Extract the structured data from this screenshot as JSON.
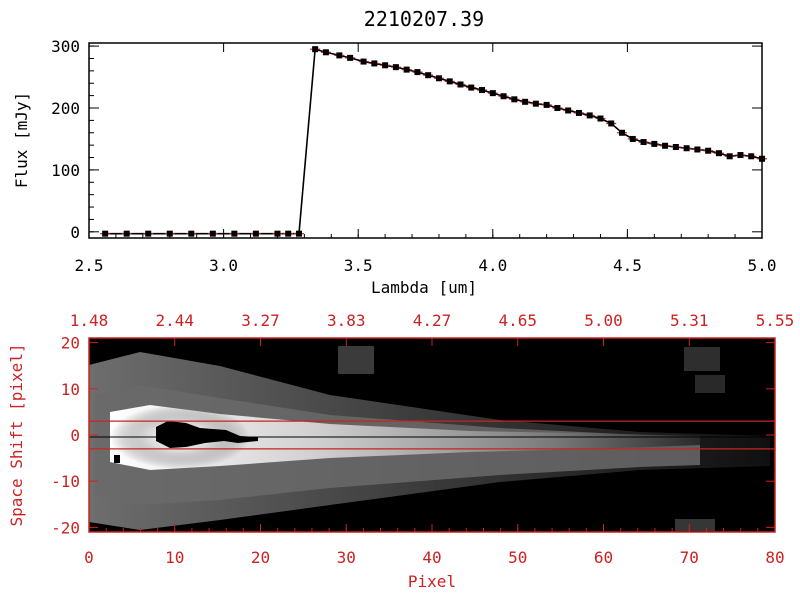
{
  "chart_data": [
    {
      "type": "line",
      "title": "2210207.39",
      "xlabel": "Lambda [um]",
      "ylabel": "Flux [mJy]",
      "xlim": [
        2.5,
        5.0
      ],
      "ylim": [
        -10,
        305
      ],
      "xticks": [
        "2.5",
        "3.0",
        "3.5",
        "4.0",
        "4.5",
        "5.0"
      ],
      "yticks": [
        "0",
        "100",
        "200",
        "300"
      ],
      "series": [
        {
          "x": [
            2.56,
            2.64,
            2.72,
            2.8,
            2.88,
            2.96,
            3.04,
            3.12,
            3.2,
            3.24,
            3.28,
            3.34,
            3.38,
            3.43,
            3.47,
            3.52,
            3.56,
            3.6,
            3.64,
            3.68,
            3.72,
            3.76,
            3.8,
            3.84,
            3.88,
            3.92,
            3.96,
            4.0,
            4.04,
            4.08,
            4.12,
            4.16,
            4.2,
            4.24,
            4.28,
            4.32,
            4.36,
            4.4,
            4.44,
            4.48,
            4.52,
            4.56,
            4.6,
            4.64,
            4.68,
            4.72,
            4.76,
            4.8,
            4.84,
            4.88,
            4.92,
            4.96,
            5.0
          ],
          "y": [
            -3,
            -3,
            -3,
            -3,
            -3,
            -3,
            -3,
            -3,
            -3,
            -3,
            -3,
            295,
            290,
            285,
            281,
            275,
            272,
            269,
            266,
            262,
            258,
            253,
            248,
            243,
            238,
            233,
            229,
            224,
            219,
            214,
            210,
            207,
            205,
            200,
            196,
            192,
            188,
            183,
            175,
            160,
            150,
            145,
            142,
            139,
            137,
            135,
            133,
            131,
            127,
            122,
            124,
            122,
            118
          ]
        }
      ]
    },
    {
      "type": "heatmap",
      "xlabel": "Pixel",
      "ylabel": "Space Shift [pixel]",
      "xlim": [
        0,
        80
      ],
      "ylim": [
        -21,
        21
      ],
      "xticks": [
        "0",
        "10",
        "20",
        "30",
        "40",
        "50",
        "60",
        "70",
        "80"
      ],
      "yticks": [
        "-20",
        "-10",
        "0",
        "10",
        "20"
      ],
      "top_axis_labels": [
        "1.48",
        "2.44",
        "3.27",
        "3.83",
        "4.27",
        "4.65",
        "5.00",
        "5.31",
        "5.55"
      ],
      "extraction_window": [
        -3,
        3
      ],
      "colors": {
        "axis": "#cc2222",
        "window_line": "#cc2222",
        "background": "#000000"
      }
    }
  ]
}
